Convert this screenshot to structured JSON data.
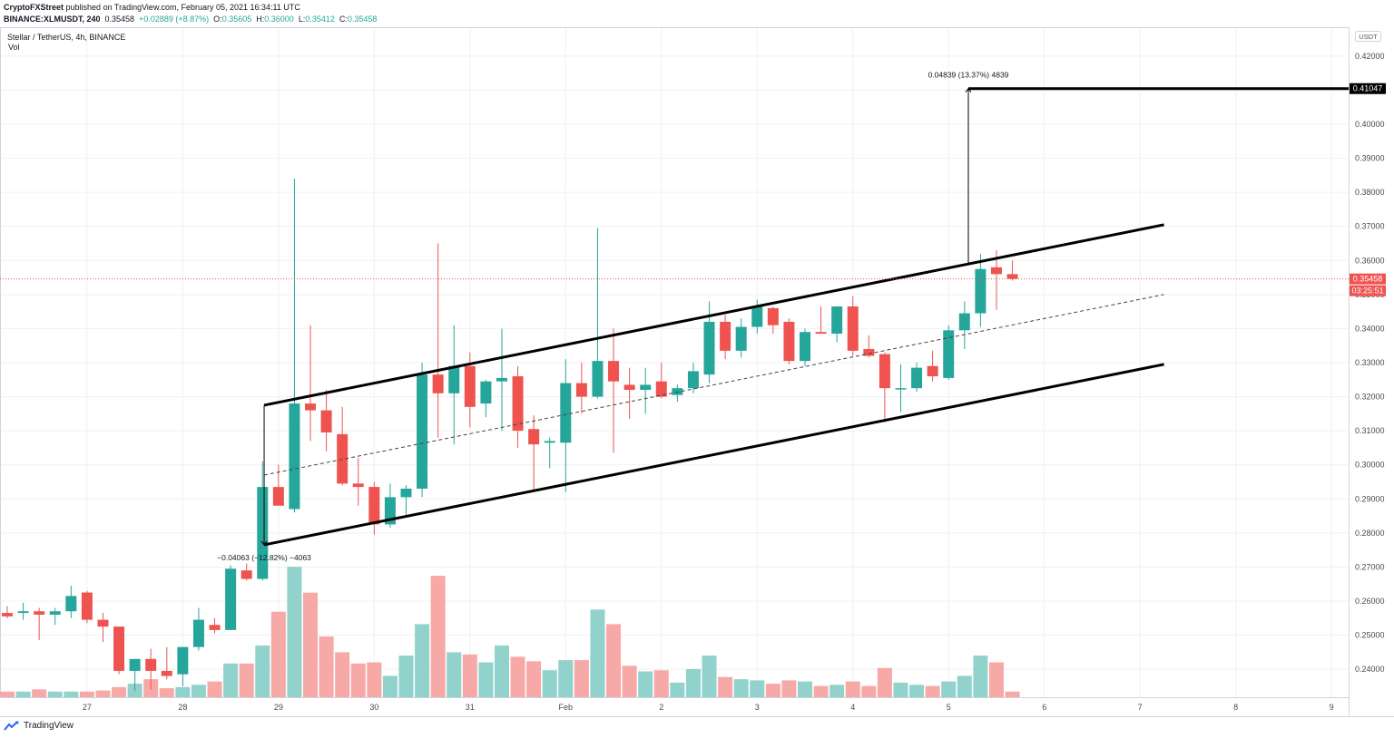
{
  "header": {
    "publisher": "CryptoFXStreet",
    "published_text": "published on TradingView.com, February 05, 2021 16:34:11 UTC",
    "symbol": "BINANCE:XLMUSDT, 240",
    "last": "0.35458",
    "change": "+0.02889 (+8.87%)",
    "o_label": "O:",
    "o": "0.35605",
    "h_label": "H:",
    "h": "0.36000",
    "l_label": "L:",
    "l": "0.35412",
    "c_label": "C:",
    "c": "0.35458"
  },
  "legend": {
    "title": "Stellar / TetherUS, 4h, BINANCE",
    "vol_label": "Vol"
  },
  "footer": {
    "brand": "TradingView"
  },
  "colors": {
    "up": "#26a69a",
    "down": "#ef5350",
    "vol_up": "#92d2cc",
    "vol_down": "#f7a9a7",
    "grid": "#eef0f3",
    "axis_text": "#4a4a4a"
  },
  "chart_data": {
    "type": "candlestick",
    "title": "Stellar / TetherUS, 4h, BINANCE",
    "currency_badge": "USDT",
    "ylim": [
      0.2315,
      0.4285
    ],
    "xlim": [
      0,
      85.4
    ],
    "y_ticks": [
      "0.42000",
      "0.41000",
      "0.40000",
      "0.39000",
      "0.38000",
      "0.37000",
      "0.36000",
      "0.35000",
      "0.34000",
      "0.33000",
      "0.32000",
      "0.31000",
      "0.30000",
      "0.29000",
      "0.28000",
      "0.27000",
      "0.26000",
      "0.25000",
      "0.24000"
    ],
    "x_ticks": [
      {
        "label": "27",
        "x": 5
      },
      {
        "label": "28",
        "x": 11
      },
      {
        "label": "29",
        "x": 17
      },
      {
        "label": "30",
        "x": 23
      },
      {
        "label": "31",
        "x": 29
      },
      {
        "label": "Feb",
        "x": 35
      },
      {
        "label": "2",
        "x": 41
      },
      {
        "label": "3",
        "x": 47
      },
      {
        "label": "4",
        "x": 53
      },
      {
        "label": "5",
        "x": 59
      },
      {
        "label": "6",
        "x": 65
      },
      {
        "label": "7",
        "x": 71
      },
      {
        "label": "8",
        "x": 77
      },
      {
        "label": "9",
        "x": 83
      }
    ],
    "candles": [
      {
        "o": 0.2565,
        "h": 0.2585,
        "l": 0.255,
        "c": 0.2555,
        "v": 0.5
      },
      {
        "o": 0.2565,
        "h": 0.2595,
        "l": 0.2545,
        "c": 0.257,
        "v": 0.5
      },
      {
        "o": 0.257,
        "h": 0.258,
        "l": 0.2485,
        "c": 0.256,
        "v": 0.7
      },
      {
        "o": 0.256,
        "h": 0.258,
        "l": 0.253,
        "c": 0.257,
        "v": 0.5
      },
      {
        "o": 0.257,
        "h": 0.2645,
        "l": 0.255,
        "c": 0.2615,
        "v": 0.5
      },
      {
        "o": 0.2625,
        "h": 0.263,
        "l": 0.2535,
        "c": 0.2545,
        "v": 0.5
      },
      {
        "o": 0.2545,
        "h": 0.2565,
        "l": 0.248,
        "c": 0.2525,
        "v": 0.6
      },
      {
        "o": 0.2525,
        "h": 0.2525,
        "l": 0.2385,
        "c": 0.2395,
        "v": 0.9
      },
      {
        "o": 0.2395,
        "h": 0.243,
        "l": 0.2335,
        "c": 0.243,
        "v": 1.2
      },
      {
        "o": 0.243,
        "h": 0.246,
        "l": 0.234,
        "c": 0.2395,
        "v": 1.6
      },
      {
        "o": 0.2395,
        "h": 0.2465,
        "l": 0.237,
        "c": 0.238,
        "v": 0.8
      },
      {
        "o": 0.2385,
        "h": 0.2465,
        "l": 0.235,
        "c": 0.2465,
        "v": 0.9
      },
      {
        "o": 0.2465,
        "h": 0.258,
        "l": 0.2455,
        "c": 0.2545,
        "v": 1.1
      },
      {
        "o": 0.253,
        "h": 0.255,
        "l": 0.2505,
        "c": 0.2515,
        "v": 1.4
      },
      {
        "o": 0.2515,
        "h": 0.2705,
        "l": 0.2515,
        "c": 0.2695,
        "v": 3.0
      },
      {
        "o": 0.269,
        "h": 0.271,
        "l": 0.266,
        "c": 0.2665,
        "v": 3.0
      },
      {
        "o": 0.2665,
        "h": 0.301,
        "l": 0.266,
        "c": 0.2935,
        "v": 4.6
      },
      {
        "o": 0.2935,
        "h": 0.3,
        "l": 0.2885,
        "c": 0.288,
        "v": 7.6
      },
      {
        "o": 0.287,
        "h": 0.384,
        "l": 0.286,
        "c": 0.318,
        "v": 11.6
      },
      {
        "o": 0.318,
        "h": 0.341,
        "l": 0.307,
        "c": 0.316,
        "v": 9.3
      },
      {
        "o": 0.316,
        "h": 0.322,
        "l": 0.304,
        "c": 0.3095,
        "v": 5.4
      },
      {
        "o": 0.309,
        "h": 0.317,
        "l": 0.294,
        "c": 0.2945,
        "v": 4.0
      },
      {
        "o": 0.2945,
        "h": 0.302,
        "l": 0.288,
        "c": 0.2935,
        "v": 3.0
      },
      {
        "o": 0.2935,
        "h": 0.295,
        "l": 0.2795,
        "c": 0.2825,
        "v": 3.1
      },
      {
        "o": 0.2825,
        "h": 0.2945,
        "l": 0.2815,
        "c": 0.2905,
        "v": 1.9
      },
      {
        "o": 0.2905,
        "h": 0.294,
        "l": 0.2845,
        "c": 0.293,
        "v": 3.7
      },
      {
        "o": 0.293,
        "h": 0.33,
        "l": 0.2905,
        "c": 0.3265,
        "v": 6.5
      },
      {
        "o": 0.3265,
        "h": 0.365,
        "l": 0.308,
        "c": 0.321,
        "v": 10.8
      },
      {
        "o": 0.321,
        "h": 0.341,
        "l": 0.306,
        "c": 0.329,
        "v": 4.0
      },
      {
        "o": 0.329,
        "h": 0.333,
        "l": 0.311,
        "c": 0.317,
        "v": 3.8
      },
      {
        "o": 0.318,
        "h": 0.325,
        "l": 0.314,
        "c": 0.3245,
        "v": 3.1
      },
      {
        "o": 0.3245,
        "h": 0.34,
        "l": 0.31,
        "c": 0.3255,
        "v": 4.6
      },
      {
        "o": 0.326,
        "h": 0.329,
        "l": 0.305,
        "c": 0.31,
        "v": 3.6
      },
      {
        "o": 0.3105,
        "h": 0.3145,
        "l": 0.2925,
        "c": 0.306,
        "v": 3.2
      },
      {
        "o": 0.3065,
        "h": 0.308,
        "l": 0.299,
        "c": 0.307,
        "v": 2.4
      },
      {
        "o": 0.3065,
        "h": 0.331,
        "l": 0.292,
        "c": 0.324,
        "v": 3.3
      },
      {
        "o": 0.324,
        "h": 0.33,
        "l": 0.315,
        "c": 0.32,
        "v": 3.3
      },
      {
        "o": 0.32,
        "h": 0.3695,
        "l": 0.3195,
        "c": 0.3305,
        "v": 7.8
      },
      {
        "o": 0.3305,
        "h": 0.34,
        "l": 0.3035,
        "c": 0.3245,
        "v": 6.5
      },
      {
        "o": 0.3235,
        "h": 0.3285,
        "l": 0.3135,
        "c": 0.322,
        "v": 2.8
      },
      {
        "o": 0.322,
        "h": 0.3285,
        "l": 0.315,
        "c": 0.3235,
        "v": 2.3
      },
      {
        "o": 0.3245,
        "h": 0.33,
        "l": 0.3195,
        "c": 0.32,
        "v": 2.4
      },
      {
        "o": 0.3205,
        "h": 0.3235,
        "l": 0.3185,
        "c": 0.3225,
        "v": 1.3
      },
      {
        "o": 0.3225,
        "h": 0.33,
        "l": 0.321,
        "c": 0.3275,
        "v": 2.5
      },
      {
        "o": 0.3265,
        "h": 0.348,
        "l": 0.324,
        "c": 0.342,
        "v": 3.7
      },
      {
        "o": 0.342,
        "h": 0.344,
        "l": 0.331,
        "c": 0.3335,
        "v": 1.8
      },
      {
        "o": 0.3335,
        "h": 0.343,
        "l": 0.3315,
        "c": 0.3405,
        "v": 1.6
      },
      {
        "o": 0.3405,
        "h": 0.3485,
        "l": 0.3385,
        "c": 0.3465,
        "v": 1.5
      },
      {
        "o": 0.346,
        "h": 0.3465,
        "l": 0.3385,
        "c": 0.341,
        "v": 1.2
      },
      {
        "o": 0.342,
        "h": 0.343,
        "l": 0.3295,
        "c": 0.3305,
        "v": 1.5
      },
      {
        "o": 0.3305,
        "h": 0.34,
        "l": 0.329,
        "c": 0.339,
        "v": 1.4
      },
      {
        "o": 0.339,
        "h": 0.3465,
        "l": 0.3385,
        "c": 0.3385,
        "v": 1.0
      },
      {
        "o": 0.3385,
        "h": 0.3465,
        "l": 0.336,
        "c": 0.3465,
        "v": 1.1
      },
      {
        "o": 0.3465,
        "h": 0.3495,
        "l": 0.332,
        "c": 0.3335,
        "v": 1.4
      },
      {
        "o": 0.334,
        "h": 0.338,
        "l": 0.3315,
        "c": 0.332,
        "v": 1.0
      },
      {
        "o": 0.3325,
        "h": 0.333,
        "l": 0.3125,
        "c": 0.3225,
        "v": 2.6
      },
      {
        "o": 0.3225,
        "h": 0.3295,
        "l": 0.3155,
        "c": 0.3225,
        "v": 1.3
      },
      {
        "o": 0.3225,
        "h": 0.33,
        "l": 0.3215,
        "c": 0.3285,
        "v": 1.1
      },
      {
        "o": 0.329,
        "h": 0.3335,
        "l": 0.3245,
        "c": 0.326,
        "v": 1.0
      },
      {
        "o": 0.3255,
        "h": 0.341,
        "l": 0.325,
        "c": 0.3395,
        "v": 1.4
      },
      {
        "o": 0.3395,
        "h": 0.348,
        "l": 0.334,
        "c": 0.3445,
        "v": 1.9
      },
      {
        "o": 0.3445,
        "h": 0.362,
        "l": 0.3405,
        "c": 0.3575,
        "v": 3.7
      },
      {
        "o": 0.358,
        "h": 0.363,
        "l": 0.3455,
        "c": 0.356,
        "v": 3.1
      },
      {
        "o": 0.356,
        "h": 0.36,
        "l": 0.3541,
        "c": 0.3546,
        "v": 0.5
      }
    ],
    "channel": {
      "upper": [
        [
          16.1,
          0.3175
        ],
        [
          72.5,
          0.3705
        ]
      ],
      "lower": [
        [
          16.1,
          0.2765
        ],
        [
          72.5,
          0.3295
        ]
      ],
      "median": [
        [
          16.1,
          0.297
        ],
        [
          72.5,
          0.35
        ]
      ]
    },
    "measure_down": {
      "text": "−0.04063 (−12.82%) −4063"
    },
    "measure_up": {
      "text": "0.04839 (13.37%) 4839"
    },
    "target_price": 0.41047,
    "target_label": "0.41047",
    "last_price": 0.35458,
    "last_price_label": "0.35458",
    "countdown_label": "03:25:51"
  }
}
